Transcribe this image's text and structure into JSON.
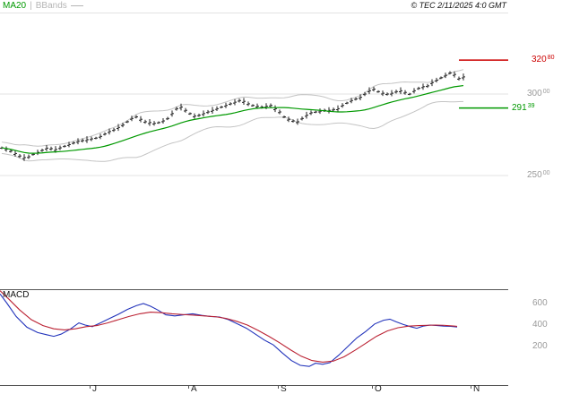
{
  "legend": {
    "ma20_label": "MA20",
    "separator": "|",
    "bbands_label": "BBands"
  },
  "copyright": "© TEC 2/11/2025 4:0 GMT",
  "macd_panel_label": "MACD",
  "colors": {
    "ma20": "#009900",
    "bbands": "#c4c4c4",
    "resistance": "#cc0000",
    "support": "#009900",
    "macd_line": "#2233bb",
    "signal_line": "#bb2233",
    "candle": "#222222",
    "grid": "#e3e3e3",
    "axis_text": "#9a9a9a",
    "frame": "#555555"
  },
  "chart_data": {
    "type": "candlestick",
    "title": "",
    "x_axis": {
      "months": [
        "J",
        "A",
        "S",
        "O",
        "N"
      ]
    },
    "price_panel": {
      "ylim": [
        25000,
        32500
      ],
      "gridlines": [
        30000,
        25000
      ],
      "y_ticks": [
        {
          "value": 30000,
          "int": "300",
          "dec": "00"
        },
        {
          "value": 25000,
          "int": "250",
          "dec": "00"
        }
      ],
      "levels": [
        {
          "name": "resistance",
          "value": 32080,
          "int": "320",
          "dec": "80",
          "color": "#cc0000"
        },
        {
          "name": "support",
          "value": 29139,
          "int": "291",
          "dec": "39",
          "color": "#009900"
        }
      ],
      "overlays": [
        {
          "name": "MA20",
          "window": 20,
          "color": "#009900"
        },
        {
          "name": "BBands",
          "window": 20,
          "stddev_mult": 2.2,
          "color": "#c4c4c4"
        }
      ],
      "candles_mid": [
        26700,
        26620,
        26500,
        26350,
        26200,
        26100,
        26150,
        26300,
        26420,
        26550,
        26680,
        26650,
        26600,
        26700,
        26800,
        26900,
        27000,
        27100,
        27150,
        27200,
        27250,
        27300,
        27400,
        27550,
        27700,
        27800,
        27950,
        28100,
        28300,
        28500,
        28600,
        28450,
        28300,
        28250,
        28200,
        28250,
        28350,
        28500,
        28800,
        29100,
        29200,
        29000,
        28800,
        28650,
        28700,
        28800,
        28900,
        29000,
        29100,
        29200,
        29300,
        29400,
        29500,
        29600,
        29550,
        29400,
        29300,
        29250,
        29200,
        29250,
        29300,
        29100,
        28900,
        28600,
        28450,
        28350,
        28300,
        28500,
        28700,
        28850,
        28900,
        28950,
        29000,
        29000,
        29050,
        29100,
        29300,
        29450,
        29600,
        29700,
        29800,
        30000,
        30200,
        30300,
        30150,
        30050,
        30000,
        30050,
        30150,
        30200,
        30100,
        30000,
        30200,
        30350,
        30450,
        30500,
        30700,
        30850,
        31000,
        31150,
        31300,
        31200,
        30950,
        31050
      ]
    },
    "macd_panel": {
      "y_ticks": [
        600,
        400,
        200
      ],
      "series": [
        {
          "name": "MACD",
          "color": "#2233bb",
          "points": [
            [
              0,
              690
            ],
            [
              8,
              600
            ],
            [
              18,
              480
            ],
            [
              30,
              380
            ],
            [
              42,
              330
            ],
            [
              52,
              310
            ],
            [
              60,
              295
            ],
            [
              68,
              315
            ],
            [
              78,
              360
            ],
            [
              88,
              420
            ],
            [
              95,
              400
            ],
            [
              103,
              385
            ],
            [
              112,
              420
            ],
            [
              122,
              460
            ],
            [
              132,
              500
            ],
            [
              142,
              545
            ],
            [
              152,
              580
            ],
            [
              160,
              600
            ],
            [
              168,
              575
            ],
            [
              176,
              540
            ],
            [
              185,
              495
            ],
            [
              195,
              485
            ],
            [
              205,
              495
            ],
            [
              215,
              505
            ],
            [
              225,
              490
            ],
            [
              235,
              480
            ],
            [
              245,
              475
            ],
            [
              255,
              450
            ],
            [
              265,
              410
            ],
            [
              275,
              370
            ],
            [
              285,
              315
            ],
            [
              295,
              260
            ],
            [
              305,
              215
            ],
            [
              315,
              140
            ],
            [
              325,
              70
            ],
            [
              335,
              25
            ],
            [
              345,
              15
            ],
            [
              352,
              45
            ],
            [
              360,
              35
            ],
            [
              368,
              50
            ],
            [
              378,
              120
            ],
            [
              388,
              200
            ],
            [
              398,
              280
            ],
            [
              408,
              340
            ],
            [
              418,
              410
            ],
            [
              428,
              445
            ],
            [
              435,
              455
            ],
            [
              442,
              430
            ],
            [
              450,
              405
            ],
            [
              458,
              385
            ],
            [
              465,
              370
            ],
            [
              472,
              390
            ],
            [
              480,
              400
            ],
            [
              488,
              395
            ],
            [
              495,
              390
            ],
            [
              503,
              388
            ],
            [
              510,
              382
            ]
          ]
        },
        {
          "name": "Signal",
          "color": "#bb2233",
          "points": [
            [
              0,
              720
            ],
            [
              10,
              640
            ],
            [
              22,
              540
            ],
            [
              35,
              450
            ],
            [
              48,
              395
            ],
            [
              60,
              365
            ],
            [
              72,
              355
            ],
            [
              84,
              365
            ],
            [
              96,
              385
            ],
            [
              108,
              395
            ],
            [
              120,
              420
            ],
            [
              132,
              450
            ],
            [
              144,
              480
            ],
            [
              156,
              505
            ],
            [
              168,
              520
            ],
            [
              180,
              515
            ],
            [
              192,
              505
            ],
            [
              204,
              498
            ],
            [
              216,
              492
            ],
            [
              228,
              485
            ],
            [
              240,
              478
            ],
            [
              252,
              462
            ],
            [
              264,
              435
            ],
            [
              276,
              400
            ],
            [
              288,
              350
            ],
            [
              300,
              295
            ],
            [
              312,
              235
            ],
            [
              324,
              170
            ],
            [
              336,
              110
            ],
            [
              348,
              70
            ],
            [
              360,
              55
            ],
            [
              372,
              65
            ],
            [
              384,
              105
            ],
            [
              396,
              165
            ],
            [
              408,
              230
            ],
            [
              420,
              295
            ],
            [
              432,
              345
            ],
            [
              444,
              375
            ],
            [
              456,
              390
            ],
            [
              468,
              395
            ],
            [
              477,
              398
            ],
            [
              486,
              400
            ],
            [
              495,
              398
            ],
            [
              504,
              392
            ],
            [
              510,
              388
            ]
          ]
        }
      ]
    }
  }
}
